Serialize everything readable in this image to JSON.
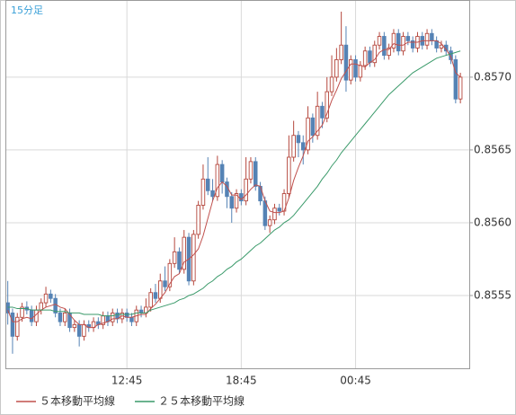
{
  "chart_data": {
    "type": "candlestick",
    "label": "15分足",
    "categories": [
      null,
      null,
      null,
      null,
      null,
      null,
      null,
      null,
      null,
      null,
      null,
      null,
      null,
      null,
      null,
      null,
      null,
      null,
      null,
      null,
      null,
      null,
      null,
      null,
      null,
      "12:45",
      null,
      null,
      null,
      null,
      null,
      null,
      null,
      null,
      null,
      null,
      null,
      null,
      null,
      null,
      null,
      null,
      null,
      null,
      null,
      null,
      null,
      null,
      null,
      "18:45",
      null,
      null,
      null,
      null,
      null,
      null,
      null,
      null,
      null,
      null,
      null,
      null,
      null,
      null,
      null,
      null,
      null,
      null,
      null,
      null,
      null,
      null,
      null,
      "00:45",
      null,
      null,
      null,
      null,
      null,
      null,
      null,
      null,
      null,
      null,
      null,
      null,
      null,
      null,
      null,
      null,
      null,
      null,
      null,
      null,
      null,
      null
    ],
    "open": [
      0.85545,
      0.85538,
      0.85522,
      0.85535,
      0.85542,
      0.8554,
      0.85532,
      0.8554,
      0.85545,
      0.85551,
      0.85548,
      0.85538,
      0.85532,
      0.85538,
      0.85528,
      0.8553,
      0.85522,
      0.8553,
      0.85528,
      0.85532,
      0.8553,
      0.85536,
      0.85532,
      0.85538,
      0.85534,
      0.85538,
      0.85535,
      0.85532,
      0.8554,
      0.85538,
      0.85542,
      0.85552,
      0.85548,
      0.8556,
      0.85556,
      0.85572,
      0.8558,
      0.85568,
      0.8559,
      0.8556,
      0.85592,
      0.85612,
      0.8563,
      0.85622,
      0.85618,
      0.8564,
      0.85628,
      0.85618,
      0.8561,
      0.8562,
      0.85615,
      0.8563,
      0.85642,
      0.85625,
      0.85615,
      0.85598,
      0.85602,
      0.8561,
      0.85608,
      0.8562,
      0.85645,
      0.8566,
      0.85655,
      0.8565,
      0.85672,
      0.8566,
      0.8568,
      0.85672,
      0.8569,
      0.857,
      0.85712,
      0.85722,
      0.85698,
      0.85712,
      0.857,
      0.85708,
      0.85718,
      0.8571,
      0.85722,
      0.85728,
      0.85715,
      0.8572,
      0.8573,
      0.85718,
      0.85728,
      0.85725,
      0.8572,
      0.85728,
      0.85722,
      0.8573,
      0.85725,
      0.8572,
      0.85722,
      0.85718,
      0.85712,
      0.85685
    ],
    "high": [
      0.8556,
      0.85541,
      0.85538,
      0.85545,
      0.85546,
      0.85543,
      0.85543,
      0.85548,
      0.85556,
      0.85554,
      0.85551,
      0.85541,
      0.85541,
      0.85541,
      0.85533,
      0.85533,
      0.85533,
      0.85533,
      0.85535,
      0.85535,
      0.85539,
      0.85539,
      0.85541,
      0.85541,
      0.85541,
      0.85541,
      0.85538,
      0.85543,
      0.85543,
      0.85548,
      0.85555,
      0.85558,
      0.85565,
      0.8557,
      0.85575,
      0.8559,
      0.85583,
      0.85595,
      0.85593,
      0.85595,
      0.85615,
      0.8564,
      0.85645,
      0.8563,
      0.85646,
      0.85643,
      0.85631,
      0.85621,
      0.85623,
      0.85623,
      0.85645,
      0.85645,
      0.85645,
      0.85628,
      0.85618,
      0.85605,
      0.85613,
      0.85613,
      0.85623,
      0.8566,
      0.8567,
      0.85663,
      0.8566,
      0.8568,
      0.85675,
      0.8569,
      0.85683,
      0.857,
      0.85715,
      0.8572,
      0.85745,
      0.85735,
      0.85715,
      0.85715,
      0.85711,
      0.85721,
      0.85721,
      0.85725,
      0.85731,
      0.85731,
      0.85723,
      0.85733,
      0.85733,
      0.85731,
      0.85731,
      0.85728,
      0.85731,
      0.85731,
      0.85733,
      0.85733,
      0.85728,
      0.85725,
      0.85725,
      0.85721,
      0.85715,
      0.85703
    ],
    "low": [
      0.8553,
      0.8551,
      0.85519,
      0.85532,
      0.85537,
      0.85529,
      0.85529,
      0.85537,
      0.85542,
      0.85545,
      0.85535,
      0.85529,
      0.85529,
      0.85525,
      0.85525,
      0.85515,
      0.85519,
      0.85525,
      0.85525,
      0.85527,
      0.85527,
      0.85529,
      0.85529,
      0.85531,
      0.85531,
      0.85532,
      0.85529,
      0.85529,
      0.85535,
      0.85535,
      0.85539,
      0.85545,
      0.85545,
      0.85553,
      0.85553,
      0.85569,
      0.85565,
      0.85565,
      0.85557,
      0.85557,
      0.85589,
      0.85609,
      0.85619,
      0.85615,
      0.85615,
      0.8562,
      0.8561,
      0.856,
      0.85607,
      0.85612,
      0.85612,
      0.85627,
      0.85622,
      0.85612,
      0.85595,
      0.85593,
      0.85599,
      0.85605,
      0.85605,
      0.85617,
      0.85642,
      0.85645,
      0.8564,
      0.85647,
      0.85655,
      0.85657,
      0.85665,
      0.85669,
      0.85687,
      0.85697,
      0.85709,
      0.8569,
      0.85695,
      0.85697,
      0.85697,
      0.85705,
      0.85707,
      0.85707,
      0.85719,
      0.85712,
      0.85712,
      0.85717,
      0.85715,
      0.85715,
      0.85722,
      0.85717,
      0.85717,
      0.85719,
      0.85719,
      0.85722,
      0.85717,
      0.85717,
      0.85715,
      0.85709,
      0.85682,
      0.85682
    ],
    "close": [
      0.85538,
      0.85522,
      0.85535,
      0.85542,
      0.8554,
      0.85532,
      0.8554,
      0.85545,
      0.85551,
      0.85548,
      0.85538,
      0.85532,
      0.85538,
      0.85528,
      0.8553,
      0.85522,
      0.8553,
      0.85528,
      0.85532,
      0.8553,
      0.85536,
      0.85532,
      0.85538,
      0.85534,
      0.85538,
      0.85535,
      0.85532,
      0.8554,
      0.85538,
      0.85542,
      0.85552,
      0.85548,
      0.8556,
      0.85556,
      0.85572,
      0.8558,
      0.85568,
      0.8559,
      0.8556,
      0.85592,
      0.85612,
      0.8563,
      0.85622,
      0.85618,
      0.8564,
      0.85628,
      0.85618,
      0.8561,
      0.8562,
      0.85615,
      0.8563,
      0.85642,
      0.85625,
      0.85615,
      0.85598,
      0.85602,
      0.8561,
      0.85608,
      0.8562,
      0.85645,
      0.8566,
      0.85655,
      0.8565,
      0.85672,
      0.8566,
      0.8568,
      0.85672,
      0.8569,
      0.857,
      0.85712,
      0.85722,
      0.85698,
      0.85712,
      0.857,
      0.85708,
      0.85718,
      0.8571,
      0.85722,
      0.85728,
      0.85715,
      0.8572,
      0.8573,
      0.85718,
      0.85728,
      0.85725,
      0.8572,
      0.85728,
      0.85722,
      0.8573,
      0.85725,
      0.8572,
      0.85722,
      0.85718,
      0.85712,
      0.85685,
      0.857
    ],
    "up_color": "#b5473d",
    "down_color": "#5583b5",
    "series": [
      {
        "name": "５本移動平均線",
        "color": "#c0504d",
        "values": [
          0.8554,
          0.85532,
          0.85532,
          0.85534,
          0.85535,
          0.85534,
          0.85537,
          0.8554,
          0.85542,
          0.85543,
          0.85544,
          0.85542,
          0.85541,
          0.85537,
          0.85533,
          0.8553,
          0.8553,
          0.85528,
          0.85528,
          0.8553,
          0.85531,
          0.85532,
          0.85534,
          0.85534,
          0.85536,
          0.85535,
          0.85535,
          0.85536,
          0.85537,
          0.85537,
          0.85541,
          0.85544,
          0.85548,
          0.85552,
          0.85558,
          0.85563,
          0.85565,
          0.85573,
          0.85575,
          0.85578,
          0.85582,
          0.85591,
          0.85603,
          0.85615,
          0.85624,
          0.85628,
          0.85625,
          0.85619,
          0.85619,
          0.85616,
          0.85619,
          0.85623,
          0.85626,
          0.85625,
          0.85615,
          0.85608,
          0.85607,
          0.85607,
          0.85608,
          0.85617,
          0.85629,
          0.85638,
          0.85646,
          0.85656,
          0.85659,
          0.85663,
          0.85667,
          0.85675,
          0.85684,
          0.85691,
          0.85699,
          0.85704,
          0.85709,
          0.85709,
          0.85708,
          0.85707,
          0.8571,
          0.85712,
          0.85717,
          0.85719,
          0.85719,
          0.85723,
          0.85722,
          0.85722,
          0.85724,
          0.85724,
          0.85724,
          0.85725,
          0.85725,
          0.85725,
          0.85725,
          0.85723,
          0.85719,
          0.85714,
          0.85703,
          0.857
        ]
      },
      {
        "name": "２５本移動平均線",
        "color": "#3a9a6a",
        "values": [
          0.85542,
          0.85542,
          0.85541,
          0.85541,
          0.85541,
          0.8554,
          0.8554,
          0.8554,
          0.8554,
          0.8554,
          0.85539,
          0.85539,
          0.85539,
          0.85538,
          0.85538,
          0.85538,
          0.85537,
          0.85537,
          0.85537,
          0.85537,
          0.85536,
          0.85536,
          0.85536,
          0.85537,
          0.85537,
          0.85537,
          0.85537,
          0.85538,
          0.85538,
          0.85538,
          0.8554,
          0.85541,
          0.85542,
          0.85543,
          0.85544,
          0.85545,
          0.85547,
          0.85548,
          0.8555,
          0.85551,
          0.85553,
          0.85555,
          0.85558,
          0.8556,
          0.85563,
          0.85565,
          0.85568,
          0.8557,
          0.85573,
          0.85575,
          0.85578,
          0.85581,
          0.85584,
          0.85586,
          0.85589,
          0.85592,
          0.85595,
          0.85597,
          0.856,
          0.85602,
          0.85605,
          0.85609,
          0.85613,
          0.85617,
          0.85621,
          0.85625,
          0.8563,
          0.85634,
          0.85639,
          0.85643,
          0.85648,
          0.85652,
          0.85656,
          0.8566,
          0.85664,
          0.85668,
          0.85672,
          0.85676,
          0.8568,
          0.85684,
          0.85688,
          0.85691,
          0.85694,
          0.85697,
          0.857,
          0.85703,
          0.85705,
          0.85707,
          0.85709,
          0.85711,
          0.85713,
          0.85714,
          0.85715,
          0.85716,
          0.85717,
          0.85718
        ]
      }
    ],
    "ylim": [
      0.855,
      0.85753
    ],
    "yticks": [
      0.8555,
      {
        "value": 0.856,
        "label": "0.8560"
      },
      0.8565,
      {
        "value": 0.857,
        "label": "0.8570"
      }
    ],
    "grid": true
  }
}
